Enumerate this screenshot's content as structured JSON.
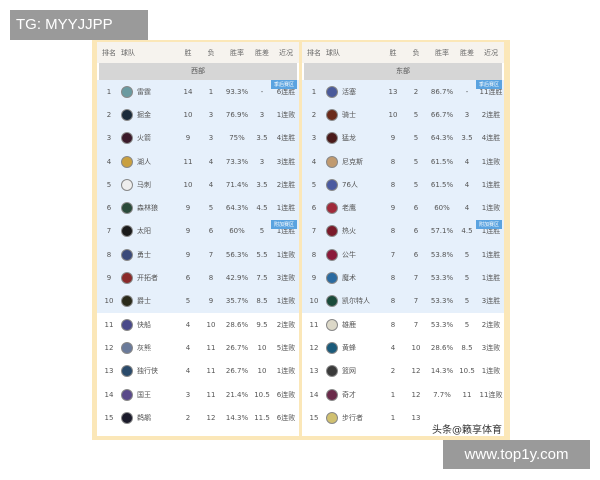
{
  "overlay": {
    "tg": "TG: MYYJJPP",
    "site": "www.top1y.com",
    "watermark": "头条@籁享体育"
  },
  "headers": [
    "排名",
    "球队",
    "胜",
    "负",
    "胜率",
    "胜差",
    "近况"
  ],
  "tags": {
    "playoff": "季后赛区",
    "playin": "附加赛区"
  },
  "west": {
    "title": "西部",
    "rows": [
      [
        "1",
        "雷霆",
        "14",
        "1",
        "93.3%",
        "-",
        "6连胜",
        "#6a9aa0"
      ],
      [
        "2",
        "掘金",
        "10",
        "3",
        "76.9%",
        "3",
        "1连败",
        "#1a2a3a"
      ],
      [
        "3",
        "火箭",
        "9",
        "3",
        "75%",
        "3.5",
        "4连胜",
        "#3a1a2a"
      ],
      [
        "4",
        "湖人",
        "11",
        "4",
        "73.3%",
        "3",
        "3连胜",
        "#c9a040"
      ],
      [
        "5",
        "马刺",
        "10",
        "4",
        "71.4%",
        "3.5",
        "2连胜",
        "#eeeeee"
      ],
      [
        "6",
        "森林狼",
        "9",
        "5",
        "64.3%",
        "4.5",
        "1连胜",
        "#2a4a3a"
      ],
      [
        "7",
        "太阳",
        "9",
        "6",
        "60%",
        "5",
        "1连胜",
        "#1a1a1a"
      ],
      [
        "8",
        "勇士",
        "9",
        "7",
        "56.3%",
        "5.5",
        "1连败",
        "#3a4a7a"
      ],
      [
        "9",
        "开拓者",
        "6",
        "8",
        "42.9%",
        "7.5",
        "3连败",
        "#8a2a2a"
      ],
      [
        "10",
        "爵士",
        "5",
        "9",
        "35.7%",
        "8.5",
        "1连败",
        "#2a2a1a"
      ],
      [
        "11",
        "快船",
        "4",
        "10",
        "28.6%",
        "9.5",
        "2连败",
        "#4a4a8a"
      ],
      [
        "12",
        "灰熊",
        "4",
        "11",
        "26.7%",
        "10",
        "5连败",
        "#6a7a9a"
      ],
      [
        "13",
        "独行侠",
        "4",
        "11",
        "26.7%",
        "10",
        "1连败",
        "#2a4a6a"
      ],
      [
        "14",
        "国王",
        "3",
        "11",
        "21.4%",
        "10.5",
        "6连败",
        "#5a4a8a"
      ],
      [
        "15",
        "鹈鹕",
        "2",
        "12",
        "14.3%",
        "11.5",
        "6连败",
        "#1a1a2a"
      ]
    ]
  },
  "east": {
    "title": "东部",
    "rows": [
      [
        "1",
        "活塞",
        "13",
        "2",
        "86.7%",
        "-",
        "11连胜",
        "#4a5a9a"
      ],
      [
        "2",
        "骑士",
        "10",
        "5",
        "66.7%",
        "3",
        "2连胜",
        "#6a2a1a"
      ],
      [
        "3",
        "猛龙",
        "9",
        "5",
        "64.3%",
        "3.5",
        "4连胜",
        "#4a1a1a"
      ],
      [
        "4",
        "尼克斯",
        "8",
        "5",
        "61.5%",
        "4",
        "1连败",
        "#c09a70"
      ],
      [
        "5",
        "76人",
        "8",
        "5",
        "61.5%",
        "4",
        "1连胜",
        "#4a5aa0"
      ],
      [
        "6",
        "老鹰",
        "9",
        "6",
        "60%",
        "4",
        "1连败",
        "#a02a3a"
      ],
      [
        "7",
        "热火",
        "8",
        "6",
        "57.1%",
        "4.5",
        "1连胜",
        "#7a1a2a"
      ],
      [
        "8",
        "公牛",
        "7",
        "6",
        "53.8%",
        "5",
        "1连胜",
        "#8a1a3a"
      ],
      [
        "9",
        "魔术",
        "8",
        "7",
        "53.3%",
        "5",
        "1连胜",
        "#2a6aa0"
      ],
      [
        "10",
        "凯尔特人",
        "8",
        "7",
        "53.3%",
        "5",
        "3连胜",
        "#1a4a3a"
      ],
      [
        "11",
        "雄鹿",
        "8",
        "7",
        "53.3%",
        "5",
        "2连败",
        "#dcd8c8"
      ],
      [
        "12",
        "黄蜂",
        "4",
        "10",
        "28.6%",
        "8.5",
        "3连败",
        "#1a5a7a"
      ],
      [
        "13",
        "篮网",
        "2",
        "12",
        "14.3%",
        "10.5",
        "1连败",
        "#3a3a3a"
      ],
      [
        "14",
        "奇才",
        "1",
        "12",
        "7.7%",
        "11",
        "11连败",
        "#6a2a4a"
      ],
      [
        "15",
        "步行者",
        "1",
        "13",
        "",
        "",
        "",
        "#d0c070"
      ]
    ]
  }
}
